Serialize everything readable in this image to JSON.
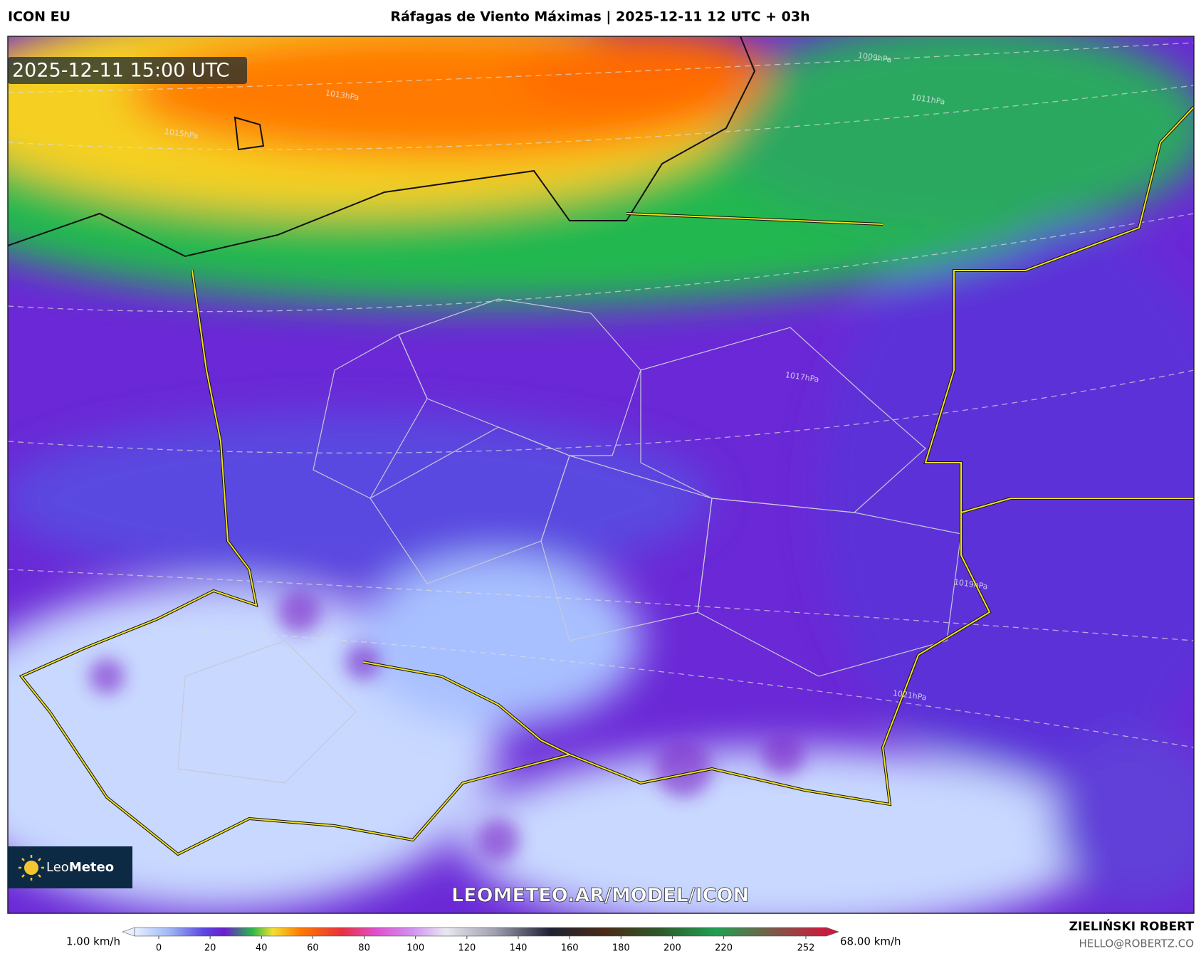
{
  "header": {
    "model": "ICON EU",
    "title": "Ráfagas de Viento Máximas | 2025-12-11 12 UTC + 03h"
  },
  "map": {
    "timestamp": "2025-12-11 15:00 UTC",
    "watermark": "LEOMETEO.AR/MODEL/ICON",
    "logo": {
      "light": "Leo",
      "bold": "Meteo"
    },
    "isobars": [
      "1009hPa",
      "1011hPa",
      "1013hPa",
      "1015hPa",
      "1017hPa",
      "1019hPa",
      "1021hPa"
    ]
  },
  "colorbar": {
    "min_label": "1.00 km/h",
    "max_label": "68.00 km/h",
    "lim": [
      0,
      252
    ],
    "ticks": [
      0,
      20,
      40,
      60,
      80,
      100,
      120,
      140,
      160,
      180,
      200,
      220,
      252
    ]
  },
  "author": {
    "name": "ZIELIŃSKI ROBERT",
    "email": "HELLO@ROBERTZ.CO"
  }
}
